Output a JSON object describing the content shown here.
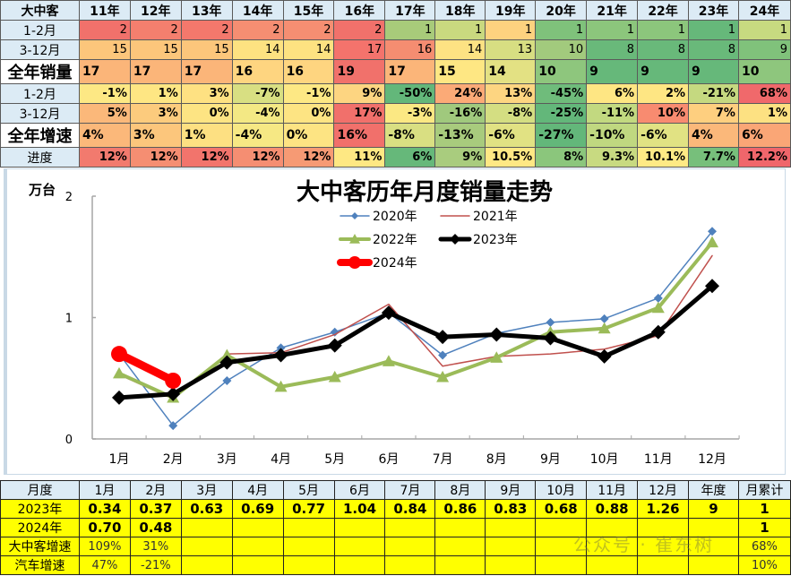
{
  "top_table": {
    "corner": "大中客",
    "years": [
      "11年",
      "12年",
      "13年",
      "14年",
      "15年",
      "16年",
      "17年",
      "18年",
      "19年",
      "20年",
      "21年",
      "22年",
      "23年",
      "24年"
    ],
    "rows": [
      {
        "label": "1-2月",
        "big": false,
        "style": "num",
        "values": [
          "2",
          "2",
          "2",
          "2",
          "2",
          "2",
          "1",
          "1",
          "1",
          "1",
          "1",
          "1",
          "1",
          "1"
        ],
        "colors": [
          "#f1716b",
          "#f47f6e",
          "#f4786c",
          "#f58e72",
          "#f58e72",
          "#f1716b",
          "#a8cb7a",
          "#c9d97f",
          "#fdd27f",
          "#7fc27b",
          "#8cc67c",
          "#8cc67c",
          "#66b87a",
          "#c7da80"
        ]
      },
      {
        "label": "3-12月",
        "big": false,
        "style": "num",
        "values": [
          "15",
          "15",
          "15",
          "14",
          "14",
          "17",
          "16",
          "14",
          "13",
          "10",
          "8",
          "8",
          "8",
          "9"
        ],
        "colors": [
          "#fcc67b",
          "#fcc67b",
          "#fcc67b",
          "#fde281",
          "#fde281",
          "#f4736c",
          "#f58d71",
          "#fde283",
          "#d7de82",
          "#a2ca7d",
          "#69b97a",
          "#69b97a",
          "#69b97a",
          "#80c27b"
        ]
      },
      {
        "label": "全年销量",
        "big": true,
        "style": "left",
        "values": [
          "17",
          "17",
          "17",
          "16",
          "16",
          "19",
          "17",
          "15",
          "14",
          "10",
          "9",
          "9",
          "9",
          "10"
        ],
        "colors": [
          "#fbb579",
          "#fbb579",
          "#fbb579",
          "#fed580",
          "#fed580",
          "#f1716b",
          "#fbb579",
          "#fee783",
          "#e3e183",
          "#8ec67d",
          "#66b87a",
          "#66b87a",
          "#66b87a",
          "#8ec67d"
        ]
      },
      {
        "label": "1-2月",
        "big": false,
        "style": "numbold",
        "values": [
          "-1%",
          "1%",
          "3%",
          "-7%",
          "-1%",
          "9%",
          "-50%",
          "24%",
          "13%",
          "-45%",
          "6%",
          "2%",
          "-21%",
          "68%"
        ],
        "colors": [
          "#fde884",
          "#fee683",
          "#fee182",
          "#d8df82",
          "#fde884",
          "#fdd581",
          "#63b77a",
          "#fbaa77",
          "#fdd581",
          "#6fbc7b",
          "#fee683",
          "#fee683",
          "#c5d980",
          "#f0696b"
        ]
      },
      {
        "label": "3-12月",
        "big": false,
        "style": "numbold",
        "values": [
          "5%",
          "3%",
          "0%",
          "-4%",
          "0%",
          "17%",
          "-3%",
          "-16%",
          "-8%",
          "-25%",
          "-11%",
          "10%",
          "7%",
          "1%"
        ],
        "colors": [
          "#fbb87a",
          "#fccb7d",
          "#fde483",
          "#f3e884",
          "#fde483",
          "#f1706b",
          "#fbe883",
          "#a0c97d",
          "#d4de82",
          "#63b77a",
          "#c2d980",
          "#f88b70",
          "#fecf7f",
          "#fde182"
        ]
      },
      {
        "label": "全年增速",
        "big": true,
        "style": "left",
        "values": [
          "4%",
          "3%",
          "1%",
          "-4%",
          "0%",
          "16%",
          "-8%",
          "-13%",
          "-6%",
          "-27%",
          "-10%",
          "-6%",
          "4%",
          "6%"
        ],
        "colors": [
          "#fbb87a",
          "#fcc67c",
          "#fde082",
          "#f6e884",
          "#fde483",
          "#f1706b",
          "#d9df82",
          "#a8cb7d",
          "#e1e283",
          "#63b77a",
          "#c0d880",
          "#e1e283",
          "#fbb87a",
          "#faa676"
        ]
      },
      {
        "label": "进度",
        "big": false,
        "style": "numbold",
        "values": [
          "12%",
          "12%",
          "12%",
          "12%",
          "12%",
          "11%",
          "6%",
          "9%",
          "10.5%",
          "8%",
          "9.3%",
          "10.1%",
          "7.7%",
          "12.2%"
        ],
        "colors": [
          "#f27a6e",
          "#f58e72",
          "#f2746c",
          "#f58e72",
          "#f69a74",
          "#fee883",
          "#66b87a",
          "#a9cc7e",
          "#fee884",
          "#8bc67c",
          "#c8da81",
          "#feea85",
          "#77bf7b",
          "#f0666b"
        ]
      }
    ]
  },
  "chart_data": {
    "type": "line",
    "title": "大中客历年月度销量走势",
    "ylabel": "万台",
    "xlabel": "",
    "ylim": [
      0,
      2
    ],
    "yticks": [
      0,
      1,
      2
    ],
    "grid": false,
    "legend_position": "top-center",
    "categories": [
      "1月",
      "2月",
      "3月",
      "4月",
      "5月",
      "6月",
      "7月",
      "8月",
      "9月",
      "10月",
      "11月",
      "12月"
    ],
    "series": [
      {
        "name": "2020年",
        "color": "#4f81bd",
        "width": 1.5,
        "marker": "diamond",
        "values": [
          0.7,
          0.11,
          0.48,
          0.75,
          0.88,
          1.04,
          0.69,
          0.87,
          0.96,
          0.99,
          1.16,
          1.71
        ]
      },
      {
        "name": "2021年",
        "color": "#c0504d",
        "width": 1.5,
        "marker": "none",
        "values": [
          0.53,
          0.33,
          0.7,
          0.71,
          0.86,
          1.11,
          0.6,
          0.68,
          0.7,
          0.74,
          0.85,
          1.51
        ]
      },
      {
        "name": "2022年",
        "color": "#9bbb59",
        "width": 4,
        "marker": "triangle",
        "values": [
          0.54,
          0.34,
          0.69,
          0.43,
          0.51,
          0.64,
          0.51,
          0.67,
          0.88,
          0.91,
          1.08,
          1.62
        ]
      },
      {
        "name": "2023年",
        "color": "#000000",
        "width": 5,
        "marker": "diamond",
        "values": [
          0.34,
          0.37,
          0.63,
          0.69,
          0.77,
          1.04,
          0.84,
          0.86,
          0.83,
          0.68,
          0.88,
          1.26
        ]
      },
      {
        "name": "2024年",
        "color": "#ff0000",
        "width": 9,
        "marker": "circle",
        "values": [
          0.7,
          0.48
        ]
      }
    ]
  },
  "bottom_table": {
    "header": [
      "月度",
      "1月",
      "2月",
      "3月",
      "4月",
      "5月",
      "6月",
      "7月",
      "8月",
      "9月",
      "10月",
      "11月",
      "12月",
      "年度",
      "月累计"
    ],
    "rows": [
      {
        "label": "2023年",
        "cls": "val",
        "values": [
          "0.34",
          "0.37",
          "0.63",
          "0.69",
          "0.77",
          "1.04",
          "0.84",
          "0.86",
          "0.83",
          "0.68",
          "0.88",
          "1.26",
          "9",
          "1"
        ]
      },
      {
        "label": "2024年",
        "cls": "val",
        "values": [
          "0.70",
          "0.48",
          "",
          "",
          "",
          "",
          "",
          "",
          "",
          "",
          "",
          "",
          "",
          "1"
        ]
      },
      {
        "label": "大中客增速",
        "cls": "pct",
        "values": [
          "109%",
          "31%",
          "",
          "",
          "",
          "",
          "",
          "",
          "",
          "",
          "",
          "",
          "",
          "68%"
        ]
      },
      {
        "label": "汽车增速",
        "cls": "pct",
        "values": [
          "47%",
          "-21%",
          "",
          "",
          "",
          "",
          "",
          "",
          "",
          "",
          "",
          "",
          "",
          "10%"
        ]
      }
    ]
  },
  "watermark": "公众号 · 崔东树"
}
